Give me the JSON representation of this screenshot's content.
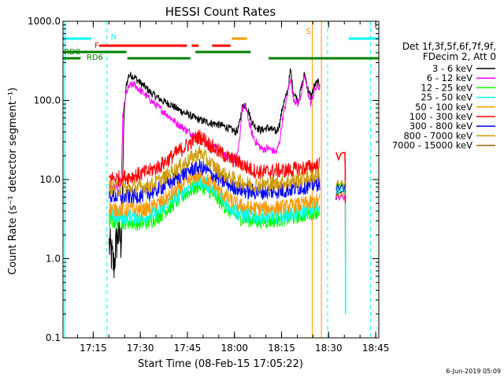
{
  "chart_data": {
    "type": "line",
    "title": "HESSI Count Rates",
    "xlabel": "Start Time (08-Feb-15 17:05:22)",
    "ylabel": "Count Rate (s⁻¹ detector segment⁻¹)",
    "yscale": "log",
    "xlim_minutes": [
      0,
      100.6
    ],
    "ylim": [
      0.1,
      1000.0
    ],
    "x_ticks": [
      {
        "min": 9.63,
        "label": "17:15"
      },
      {
        "min": 24.63,
        "label": "17:30"
      },
      {
        "min": 39.63,
        "label": "17:45"
      },
      {
        "min": 54.63,
        "label": "18:00"
      },
      {
        "min": 69.63,
        "label": "18:15"
      },
      {
        "min": 84.63,
        "label": "18:30"
      },
      {
        "min": 99.63,
        "label": "18:45"
      }
    ],
    "y_ticks": [
      {
        "v": 0.1,
        "label": "0.1"
      },
      {
        "v": 1.0,
        "label": "1.0"
      },
      {
        "v": 10.0,
        "label": "10.0"
      },
      {
        "v": 100.0,
        "label": "100.0"
      },
      {
        "v": 1000.0,
        "label": "1000.0"
      }
    ],
    "legend": {
      "header": [
        "Det 1f,3f,5f,6f,7f,9f,",
        "FDecim 2, Att 0"
      ],
      "placement": "right"
    },
    "series": [
      {
        "name": "3 - 6 keV",
        "color": "#000000",
        "x": [
          14.7,
          15.5,
          16.2,
          17.0,
          17.8,
          18.6,
          19.4,
          20.2,
          21.0,
          22.0,
          23.0,
          24.0,
          26.0,
          28.0,
          30.0,
          32.0,
          34.0,
          36.0,
          38.0,
          40.0,
          42.0,
          44.0,
          46.0,
          48.0,
          50.0,
          52.0,
          54.0,
          55.0,
          55.6,
          56.2,
          57.0,
          58.0,
          59.0,
          60.0,
          61.0,
          62.0,
          63.0,
          64.0,
          65.0,
          66.0,
          67.0,
          68.0,
          69.0,
          70.0,
          71.0,
          71.8,
          72.5,
          73.3,
          74.2,
          75.0,
          76.0,
          77.0,
          78.0,
          79.0,
          80.0,
          81.0,
          81.8
        ],
        "y": [
          1.5,
          1.1,
          0.8,
          1.6,
          2.2,
          1.4,
          60,
          160,
          210,
          205,
          195,
          175,
          150,
          125,
          110,
          97,
          90,
          80,
          72,
          66,
          60,
          56,
          53,
          51,
          49,
          46,
          42,
          40,
          42,
          50,
          80,
          90,
          75,
          55,
          48,
          45,
          42,
          43,
          45,
          44,
          42,
          40,
          50,
          85,
          110,
          150,
          250,
          130,
          110,
          100,
          150,
          220,
          140,
          110,
          150,
          170,
          160
        ]
      },
      {
        "name": "6 - 12 keV",
        "color": "#ff00ff",
        "x": [
          14.7,
          16.0,
          17.0,
          18.0,
          18.6,
          19.0,
          19.8,
          20.6,
          21.5,
          22.5,
          24.0,
          26.0,
          28.0,
          30.0,
          32.0,
          34.0,
          36.0,
          38.0,
          40.0,
          42.0,
          44.0,
          46.0,
          48.0,
          50.0,
          52.0,
          54.0,
          55.0,
          55.6,
          56.2,
          57.0,
          58.0,
          59.0,
          60.0,
          61.0,
          62.0,
          63.0,
          64.0,
          65.0,
          66.0,
          67.0,
          68.0,
          69.0,
          70.0,
          71.0,
          71.8,
          72.5,
          73.3,
          74.2,
          75.0,
          76.0,
          77.0,
          78.0,
          79.0,
          80.0,
          81.0,
          81.8
        ],
        "y": [
          8.0,
          8.0,
          8.0,
          8.0,
          9.0,
          60,
          105,
          140,
          155,
          160,
          140,
          120,
          100,
          85,
          72,
          62,
          52,
          46,
          40,
          36,
          32,
          28,
          26,
          23,
          20,
          19,
          18,
          20,
          30,
          75,
          85,
          60,
          40,
          32,
          28,
          25,
          24,
          25,
          24,
          23,
          22,
          30,
          60,
          90,
          140,
          200,
          110,
          95,
          90,
          130,
          200,
          130,
          90,
          130,
          150,
          145
        ]
      },
      {
        "name": "12 - 25 keV",
        "color": "#00ff00",
        "x": [
          14.7,
          17.0,
          19.0,
          22.0,
          25.0,
          28.0,
          31.0,
          34.0,
          37.0,
          40.0,
          42.0,
          43.5,
          45.0,
          47.0,
          50.0,
          53.0,
          56.0,
          59.0,
          62.0,
          65.0,
          68.0,
          71.0,
          74.0,
          77.0,
          80.0,
          81.8
        ],
        "y": [
          3.0,
          2.9,
          2.9,
          2.9,
          2.8,
          3.0,
          3.6,
          4.5,
          5.7,
          7.0,
          8.0,
          8.5,
          8.0,
          7.0,
          5.3,
          4.0,
          3.3,
          3.1,
          3.0,
          3.0,
          3.1,
          3.2,
          3.4,
          3.6,
          3.9,
          4.1
        ]
      },
      {
        "name": "25 - 50 keV",
        "color": "#00ffff",
        "x": [
          14.7,
          17.0,
          19.0,
          22.0,
          25.0,
          28.0,
          31.0,
          34.0,
          37.0,
          40.0,
          42.0,
          43.5,
          45.0,
          47.0,
          50.0,
          53.0,
          56.0,
          59.0,
          62.0,
          65.0,
          68.0,
          71.0,
          74.0,
          77.0,
          80.0,
          81.8
        ],
        "y": [
          3.5,
          3.4,
          3.4,
          3.4,
          3.3,
          3.6,
          4.2,
          5.2,
          6.5,
          8.0,
          9.3,
          9.8,
          9.2,
          8.0,
          6.0,
          4.6,
          3.8,
          3.5,
          3.4,
          3.4,
          3.5,
          3.6,
          3.8,
          4.0,
          4.3,
          4.5
        ]
      },
      {
        "name": "50 - 100 keV",
        "color": "#ff9900",
        "x": [
          14.7,
          17.0,
          19.0,
          22.0,
          25.0,
          28.0,
          31.0,
          34.0,
          37.0,
          40.0,
          42.0,
          43.5,
          45.0,
          47.0,
          50.0,
          53.0,
          56.0,
          59.0,
          62.0,
          65.0,
          68.0,
          71.0,
          74.0,
          77.0,
          80.0,
          81.8
        ],
        "y": [
          4.3,
          4.2,
          4.2,
          4.2,
          4.1,
          4.4,
          5.1,
          6.2,
          7.8,
          9.5,
          10.8,
          11.3,
          10.6,
          9.3,
          7.1,
          5.5,
          4.7,
          4.4,
          4.3,
          4.3,
          4.4,
          4.5,
          4.7,
          4.9,
          5.2,
          5.4
        ]
      },
      {
        "name": "100 - 300 keV",
        "color": "#ff0000",
        "x": [
          14.7,
          17.0,
          19.0,
          22.0,
          25.0,
          28.0,
          31.0,
          34.0,
          37.0,
          40.0,
          42.0,
          43.5,
          45.0,
          47.0,
          50.0,
          53.0,
          56.0,
          59.0,
          62.0,
          65.0,
          68.0,
          71.0,
          74.0,
          77.0,
          80.0,
          81.8
        ],
        "y": [
          10.5,
          10.4,
          10.6,
          11.0,
          11.8,
          13.0,
          15.0,
          18.5,
          23.0,
          28.0,
          33.0,
          35.0,
          32.0,
          27.0,
          22.0,
          18.5,
          16.5,
          14.0,
          12.5,
          12.5,
          13.0,
          13.0,
          13.5,
          14.0,
          14.8,
          15.5
        ]
      },
      {
        "name": "300 - 800 keV",
        "color": "#0000ff",
        "x": [
          14.7,
          17.0,
          19.0,
          22.0,
          25.0,
          28.0,
          31.0,
          34.0,
          37.0,
          40.0,
          42.0,
          43.5,
          45.0,
          47.0,
          50.0,
          53.0,
          56.0,
          59.0,
          62.0,
          65.0,
          68.0,
          71.0,
          74.0,
          77.0,
          80.0,
          81.8
        ],
        "y": [
          6.3,
          6.1,
          6.0,
          6.1,
          6.3,
          6.8,
          7.8,
          9.2,
          11.0,
          12.8,
          14.0,
          14.5,
          13.6,
          12.0,
          10.0,
          8.6,
          7.6,
          7.0,
          6.9,
          7.0,
          7.1,
          7.3,
          7.7,
          8.1,
          8.7,
          9.1
        ]
      },
      {
        "name": "800 - 7000 keV",
        "color": "#cc9900",
        "x": [
          14.7,
          17.0,
          19.0,
          22.0,
          25.0,
          28.0,
          31.0,
          34.0,
          37.0,
          40.0,
          42.0,
          43.5,
          45.0,
          47.0,
          50.0,
          53.0,
          56.0,
          59.0,
          62.0,
          65.0,
          68.0,
          71.0,
          74.0,
          77.0,
          80.0,
          81.8
        ],
        "y": [
          8.0,
          7.8,
          7.7,
          7.8,
          8.0,
          8.6,
          9.8,
          11.8,
          14.5,
          17.5,
          20.0,
          22.0,
          19.5,
          16.0,
          12.5,
          10.6,
          9.5,
          8.8,
          8.6,
          8.7,
          8.9,
          9.2,
          9.7,
          10.3,
          11.0,
          11.6
        ]
      },
      {
        "name": "7000 - 15000 keV",
        "color": "#996600",
        "x": [],
        "y": []
      }
    ],
    "tail_segments": [
      {
        "color": "#ff0000",
        "x": [
          87.0,
          87.4,
          87.8,
          88.5,
          89.3,
          89.8,
          89.9,
          90.0
        ],
        "y": [
          22,
          20,
          18,
          21,
          22,
          22,
          15,
          0.8
        ]
      },
      {
        "name": "3 - 6 keV tail",
        "color": "#000000",
        "x": [
          87.0,
          87.3,
          87.7,
          88.2,
          88.8,
          89.5,
          89.9
        ],
        "y": [
          5.5,
          7.5,
          6.5,
          6.8,
          7.0,
          7.2,
          7.4
        ]
      }
    ],
    "state_bars": [
      {
        "label": "N",
        "color": "#00ffff",
        "row": "top",
        "ranges": [
          [
            0,
            9.0
          ],
          [
            91.0,
            100.6
          ]
        ]
      },
      {
        "label": "F",
        "color": "#ff0000",
        "row": "mid",
        "ranges": [
          [
            11.5,
            39.5
          ],
          [
            41.0,
            43.2
          ],
          [
            47.5,
            53.4
          ]
        ]
      },
      {
        "label": "S",
        "color": "#ff9900",
        "row": "top",
        "ranges": [
          [
            53.8,
            58.6
          ]
        ]
      },
      {
        "label": "RD0",
        "color": "#008000",
        "row": "rd0",
        "ranges": [
          [
            0,
            20.2
          ],
          [
            42.2,
            59.8
          ]
        ]
      },
      {
        "label": "RD6",
        "color": "#008000",
        "row": "rd6",
        "ranges": [
          [
            0,
            5.6
          ],
          [
            20.5,
            40.6
          ],
          [
            65.5,
            100.6
          ]
        ]
      }
    ],
    "vertical_markers": [
      {
        "x": 0.6,
        "color": "#00ffff",
        "style": "solid"
      },
      {
        "x": 14.0,
        "color": "#00ffff",
        "style": "dashed"
      },
      {
        "x": 79.4,
        "color": "#ff9900",
        "style": "solid"
      },
      {
        "x": 82.3,
        "color": "#ff9900",
        "style": "solid"
      },
      {
        "x": 84.3,
        "color": "#00ffff",
        "style": "dashed"
      },
      {
        "x": 98.0,
        "color": "#00ffff",
        "style": "dashed"
      }
    ],
    "footer_date": "6-Jun-2019 05:09",
    "grid": false
  }
}
